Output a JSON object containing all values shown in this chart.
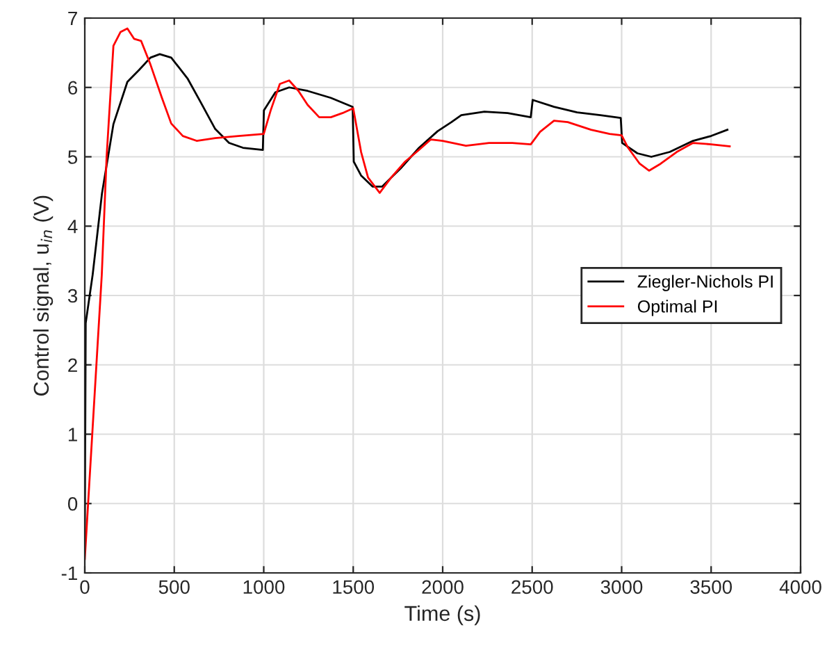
{
  "chart_data": {
    "type": "line",
    "xlabel": "Time (s)",
    "ylabel": "Control signal, u$_{in}$ (V)",
    "xlim": [
      0,
      4000
    ],
    "xticks": [
      0,
      500,
      1000,
      1500,
      2000,
      2500,
      3000,
      3500,
      4000
    ],
    "ylim": [
      -1,
      7
    ],
    "yticks": [
      -1,
      0,
      1,
      2,
      3,
      4,
      5,
      6,
      7
    ],
    "grid": true,
    "legend": "right",
    "series": [
      {
        "name": "Ziegler-Nichols PI",
        "color": "#000000",
        "x": [
          0,
          5,
          44,
          96,
          160,
          238,
          303,
          367,
          419,
          483,
          574,
          651,
          729,
          806,
          884,
          995,
          1001,
          1065,
          1142,
          1245,
          1375,
          1497,
          1503,
          1544,
          1609,
          1661,
          1764,
          1868,
          1972,
          2049,
          2104,
          2233,
          2363,
          2492,
          2503,
          2622,
          2751,
          2881,
          2995,
          3003,
          3088,
          3166,
          3269,
          3399,
          3500,
          3591
        ],
        "values": [
          -0.6,
          2.6,
          3.3,
          4.47,
          5.47,
          6.08,
          6.25,
          6.43,
          6.48,
          6.43,
          6.13,
          5.77,
          5.4,
          5.2,
          5.13,
          5.1,
          5.67,
          5.93,
          6.0,
          5.95,
          5.85,
          5.72,
          4.93,
          4.73,
          4.57,
          4.57,
          4.83,
          5.13,
          5.37,
          5.5,
          5.6,
          5.65,
          5.63,
          5.57,
          5.82,
          5.72,
          5.64,
          5.6,
          5.56,
          5.2,
          5.05,
          5.0,
          5.07,
          5.23,
          5.3,
          5.39
        ]
      },
      {
        "name": "Optimal PI",
        "color": "#ff0000",
        "x": [
          0,
          95,
          122,
          160,
          200,
          238,
          276,
          315,
          367,
          431,
          483,
          548,
          625,
          729,
          858,
          1000,
          1039,
          1090,
          1142,
          1194,
          1245,
          1310,
          1375,
          1440,
          1500,
          1544,
          1583,
          1648,
          1712,
          1790,
          1868,
          1934,
          2000,
          2130,
          2259,
          2389,
          2492,
          2544,
          2622,
          2699,
          2829,
          2933,
          3000,
          3036,
          3101,
          3153,
          3218,
          3308,
          3399,
          3500,
          3604
        ],
        "values": [
          -0.8,
          3.3,
          5.0,
          6.6,
          6.8,
          6.85,
          6.7,
          6.67,
          6.33,
          5.85,
          5.48,
          5.3,
          5.23,
          5.27,
          5.3,
          5.33,
          5.67,
          6.05,
          6.1,
          5.95,
          5.75,
          5.57,
          5.57,
          5.63,
          5.7,
          5.07,
          4.7,
          4.48,
          4.7,
          4.93,
          5.1,
          5.25,
          5.23,
          5.16,
          5.2,
          5.2,
          5.18,
          5.36,
          5.52,
          5.5,
          5.39,
          5.33,
          5.31,
          5.13,
          4.9,
          4.8,
          4.9,
          5.07,
          5.2,
          5.18,
          5.15
        ]
      }
    ]
  }
}
